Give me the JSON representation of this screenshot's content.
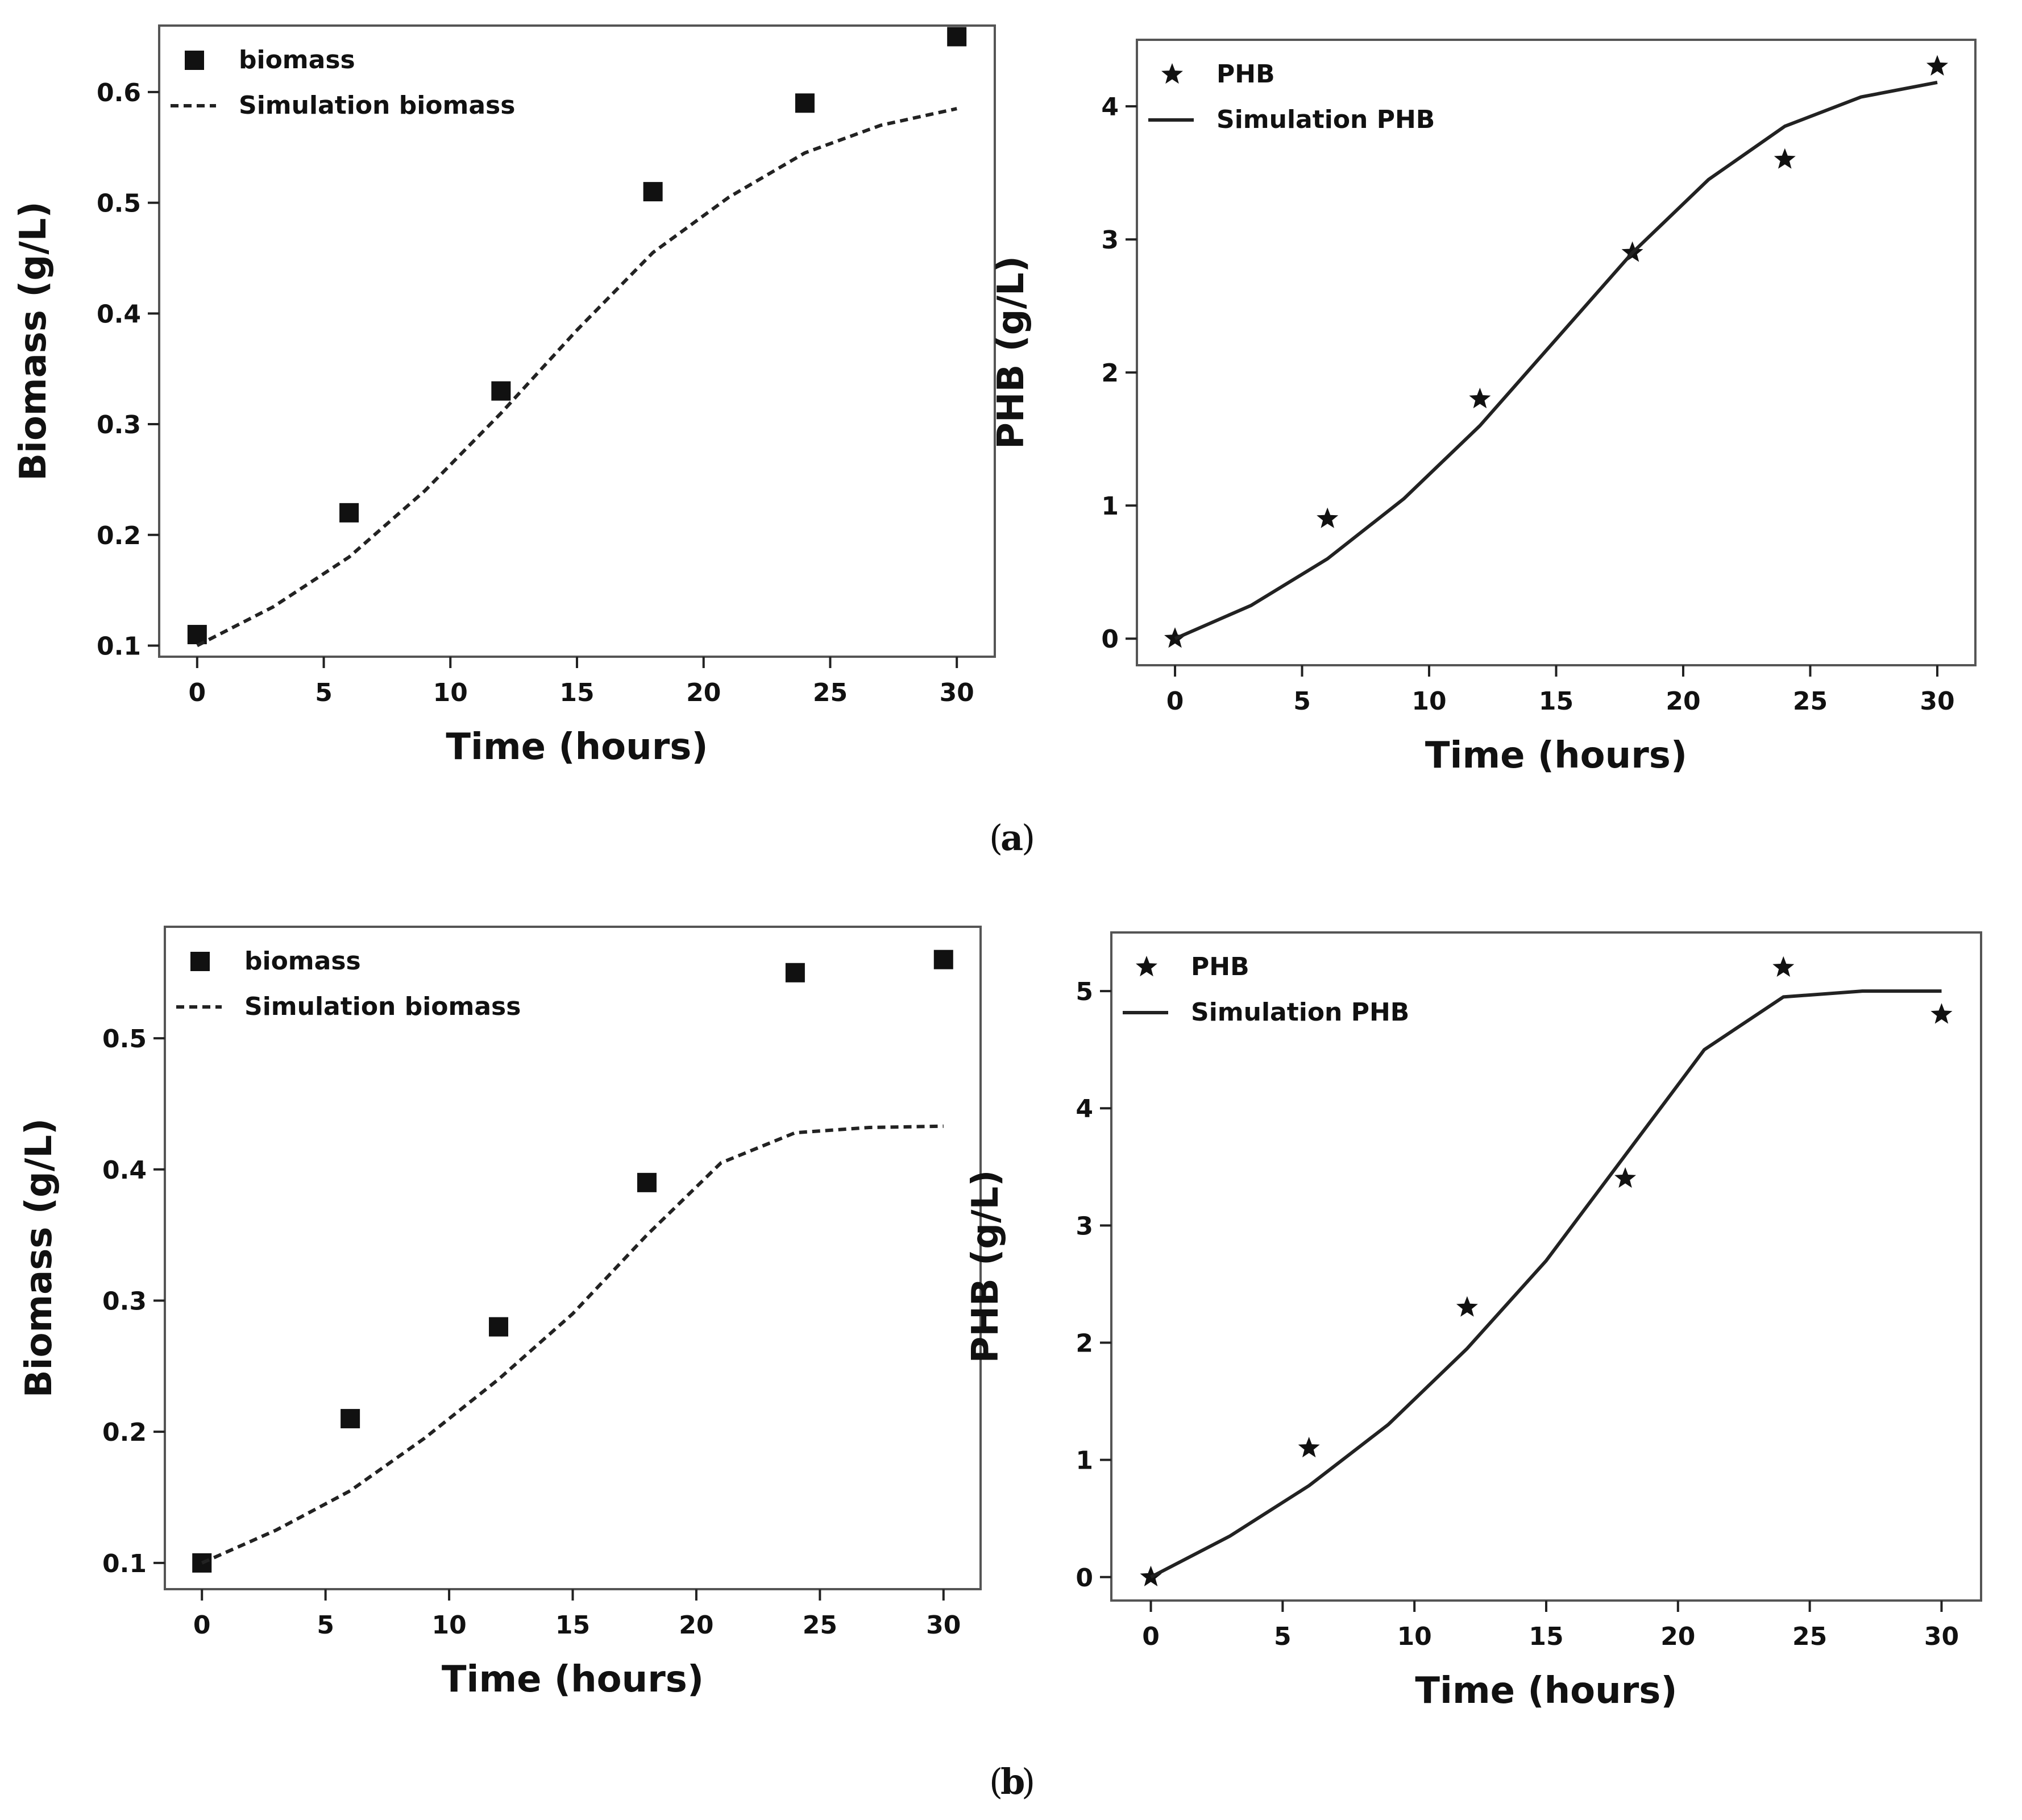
{
  "figure": {
    "captions": [
      "(a)",
      "(b)"
    ],
    "caption_letters": [
      "a",
      "b"
    ]
  },
  "chart_data": [
    {
      "id": "a-biomass",
      "type": "scatter",
      "panel": "a",
      "xlabel": "Time (hours)",
      "ylabel": "Biomass (g/L)",
      "xlim": [
        -1.5,
        31.5
      ],
      "ylim": [
        0.09,
        0.66
      ],
      "xticks": [
        0,
        5,
        10,
        15,
        20,
        25,
        30
      ],
      "yticks": [
        0.1,
        0.2,
        0.3,
        0.4,
        0.5,
        0.6
      ],
      "legend": "top-left",
      "grid": false,
      "series": [
        {
          "name": "biomass",
          "kind": "points",
          "marker": "square",
          "x": [
            0,
            6,
            12,
            18,
            24,
            30
          ],
          "y": [
            0.11,
            0.22,
            0.33,
            0.51,
            0.59,
            0.65
          ]
        },
        {
          "name": "Simulation biomass",
          "kind": "line",
          "style": "dashed",
          "x": [
            0,
            3,
            6,
            9,
            12,
            15,
            18,
            21,
            24,
            27,
            30
          ],
          "y": [
            0.1,
            0.135,
            0.18,
            0.24,
            0.31,
            0.385,
            0.455,
            0.505,
            0.545,
            0.57,
            0.585
          ]
        }
      ]
    },
    {
      "id": "a-phb",
      "type": "scatter",
      "panel": "a",
      "xlabel": "Time (hours)",
      "ylabel": "PHB (g/L)",
      "xlim": [
        -1.5,
        31.5
      ],
      "ylim": [
        -0.2,
        4.5
      ],
      "xticks": [
        0,
        5,
        10,
        15,
        20,
        25,
        30
      ],
      "yticks": [
        0,
        1,
        2,
        3,
        4
      ],
      "legend": "top-left",
      "grid": false,
      "series": [
        {
          "name": "PHB",
          "kind": "points",
          "marker": "star",
          "x": [
            0,
            6,
            12,
            18,
            24,
            30
          ],
          "y": [
            0,
            0.9,
            1.8,
            2.9,
            3.6,
            4.3
          ]
        },
        {
          "name": "Simulation PHB",
          "kind": "line",
          "style": "solid",
          "x": [
            0,
            3,
            6,
            9,
            12,
            15,
            18,
            21,
            24,
            27,
            30
          ],
          "y": [
            0,
            0.25,
            0.6,
            1.05,
            1.6,
            2.25,
            2.9,
            3.45,
            3.85,
            4.07,
            4.18
          ]
        }
      ]
    },
    {
      "id": "b-biomass",
      "type": "scatter",
      "panel": "b",
      "xlabel": "Time (hours)",
      "ylabel": "Biomass (g/L)",
      "xlim": [
        -1.5,
        31.5
      ],
      "ylim": [
        0.08,
        0.585
      ],
      "xticks": [
        0,
        5,
        10,
        15,
        20,
        25,
        30
      ],
      "yticks": [
        0.1,
        0.2,
        0.3,
        0.4,
        0.5
      ],
      "legend": "top-left",
      "grid": false,
      "series": [
        {
          "name": "biomass",
          "kind": "points",
          "marker": "square",
          "x": [
            0,
            6,
            12,
            18,
            24,
            30
          ],
          "y": [
            0.1,
            0.21,
            0.28,
            0.39,
            0.55,
            0.56
          ]
        },
        {
          "name": "Simulation biomass",
          "kind": "line",
          "style": "dashed",
          "x": [
            0,
            3,
            6,
            9,
            12,
            15,
            18,
            21,
            24,
            27,
            30
          ],
          "y": [
            0.1,
            0.125,
            0.155,
            0.195,
            0.24,
            0.29,
            0.35,
            0.405,
            0.428,
            0.432,
            0.433
          ]
        }
      ]
    },
    {
      "id": "b-phb",
      "type": "scatter",
      "panel": "b",
      "xlabel": "Time (hours)",
      "ylabel": "PHB (g/L)",
      "xlim": [
        -1.5,
        31.5
      ],
      "ylim": [
        -0.2,
        5.5
      ],
      "xticks": [
        0,
        5,
        10,
        15,
        20,
        25,
        30
      ],
      "yticks": [
        0,
        1,
        2,
        3,
        4,
        5
      ],
      "legend": "top-left",
      "grid": false,
      "series": [
        {
          "name": "PHB",
          "kind": "points",
          "marker": "star",
          "x": [
            0,
            6,
            12,
            18,
            24,
            30
          ],
          "y": [
            0,
            1.1,
            2.3,
            3.4,
            5.2,
            4.8
          ]
        },
        {
          "name": "Simulation PHB",
          "kind": "line",
          "style": "solid",
          "x": [
            0,
            3,
            6,
            9,
            12,
            15,
            18,
            21,
            24,
            27,
            30
          ],
          "y": [
            0,
            0.35,
            0.78,
            1.3,
            1.95,
            2.7,
            3.6,
            4.5,
            4.95,
            5.0,
            5.0
          ]
        }
      ]
    }
  ]
}
